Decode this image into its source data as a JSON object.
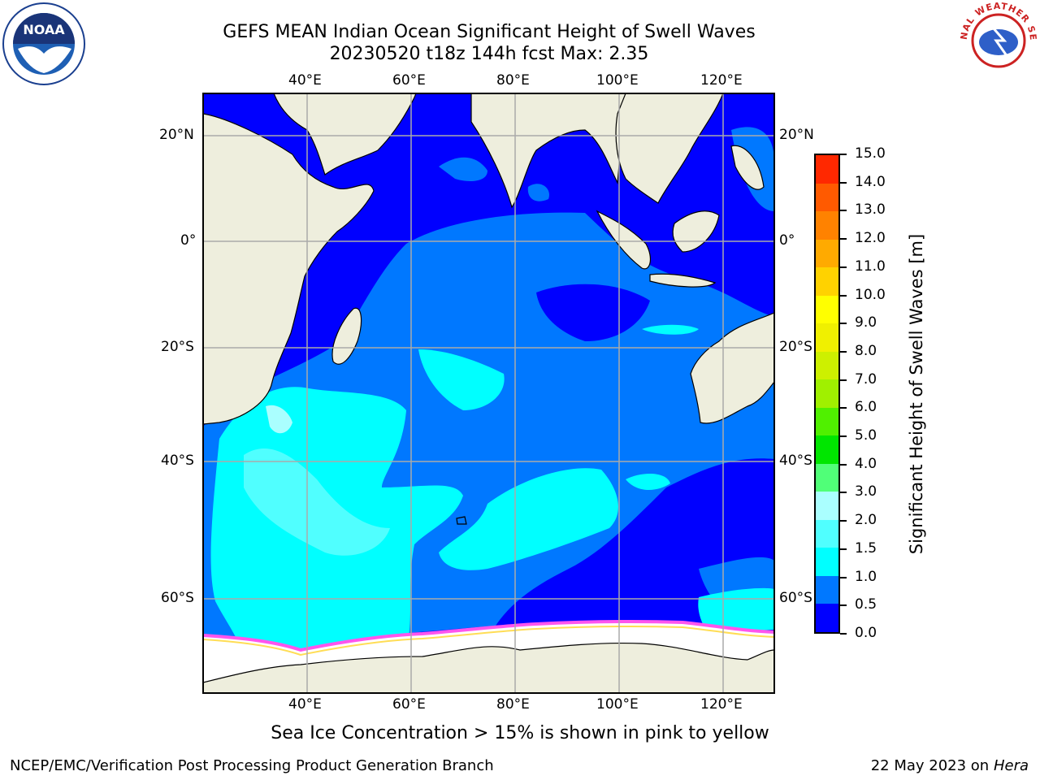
{
  "title_line1": "GEFS MEAN Indian Ocean Significant Height of Swell Waves",
  "title_line2": "20230520 t18z 144h fcst   Max: 2.35",
  "lon_labels": [
    "40°E",
    "60°E",
    "80°E",
    "100°E",
    "120°E"
  ],
  "lat_labels": [
    "20°N",
    "0°",
    "20°S",
    "40°S",
    "60°S"
  ],
  "colorbar": {
    "label": "Significant Height of Swell Waves [m]",
    "ticks": [
      "0.0",
      "0.5",
      "1.0",
      "1.5",
      "2.0",
      "3.0",
      "4.0",
      "5.0",
      "6.0",
      "7.0",
      "8.0",
      "9.0",
      "10.0",
      "11.0",
      "12.0",
      "13.0",
      "14.0",
      "15.0"
    ],
    "colors": [
      "#0000ff",
      "#0078ff",
      "#00ffff",
      "#50ffff",
      "#aaffff",
      "#50ff78",
      "#00e600",
      "#50f000",
      "#a0f000",
      "#cdf000",
      "#f0f000",
      "#ffff00",
      "#ffd200",
      "#ffaa00",
      "#ff8200",
      "#ff5a00",
      "#ff2800",
      "#ff0000"
    ]
  },
  "note": "Sea Ice Concentration > 15% is shown in pink to yellow",
  "footer_left": "NCEP/EMC/Verification Post Processing Product Generation Branch",
  "footer_date": "22 May 2023 on",
  "footer_machine": "Hera",
  "colors": {
    "land": "#eeeedd",
    "ocean_low": "#0000ff",
    "ocean_mid": "#0078ff",
    "ocean_high": "#00ffff",
    "ocean_top": "#50ffff",
    "ice": "#ffffff",
    "ice_edge": "#ff55ee",
    "grid": "#aaaaaa"
  },
  "logos": {
    "left": "NOAA",
    "right": "NATIONAL WEATHER SERVICE"
  }
}
